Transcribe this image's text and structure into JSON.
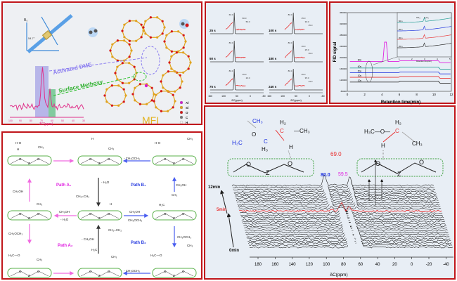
{
  "panel_mechanism_overview": {
    "field_label": "B₀",
    "angle_label": "54.7°",
    "activated_label": "Activated DME",
    "methoxy_label": "Surface Methoxy",
    "framework_label": "MFI",
    "axis_ticks": [
      "100",
      "90",
      "80",
      "70",
      "60",
      "50",
      "40",
      "30"
    ],
    "axis_label": "δC(ppm)",
    "legend": [
      {
        "label": "Al",
        "color": "#d51ccf"
      },
      {
        "label": "Si",
        "color": "#e0a21c"
      },
      {
        "label": "O",
        "color": "#d61616"
      },
      {
        "label": "C",
        "color": "#777777"
      },
      {
        "label": "H",
        "color": "#f4f4f4"
      }
    ]
  },
  "panel_nmr_series": {
    "axis_ticks": [
      "150",
      "100",
      "50",
      "0",
      "-50"
    ],
    "axis_label": "δC(ppm)",
    "spectra": [
      {
        "time": "25 s",
        "peaks": [
          "60.0",
          "80.0",
          "50.0"
        ]
      },
      {
        "time": "50 s",
        "peaks": [
          "80.0"
        ]
      },
      {
        "time": "75 s",
        "peaks": [
          "80.0",
          "25.0",
          "20.0"
        ]
      },
      {
        "time": "100 s",
        "peaks": [
          "80.0",
          "25.0",
          "30.0",
          "25.0"
        ]
      },
      {
        "time": "180 s",
        "peaks": [
          "80.0",
          "16.0",
          "25.0",
          "35.0"
        ]
      },
      {
        "time": "240 s",
        "peaks": [
          "80.0",
          "25.0",
          "35.0",
          "23.0"
        ]
      }
    ]
  },
  "panel_gc": {
    "ylabel": "FID signal",
    "xlabel": "Retention time(min)",
    "y_ticks": [
      "360000",
      "320000",
      "280000",
      "240000",
      "200000",
      "160000",
      "120000",
      "80000"
    ],
    "x_ticks": [
      "0",
      "2",
      "4",
      "6",
      "8",
      "10",
      "12"
    ],
    "series": [
      {
        "label": "80s",
        "color": "#e020e0",
        "baseline": 186000
      },
      {
        "label": "60s",
        "color": "#2aa198",
        "baseline": 163000
      },
      {
        "label": "50s",
        "color": "#2a3ee0",
        "baseline": 146000
      },
      {
        "label": "30s",
        "color": "#e84040",
        "baseline": 130000
      },
      {
        "label": "20s",
        "color": "#333333",
        "baseline": 113000
      }
    ],
    "inset": {
      "series_labels": [
        "60 s",
        "50 s",
        "30 s",
        "20 s"
      ],
      "peak_labels": [
        "CH₄",
        "C₂H₄"
      ],
      "x_ticks": [
        "1",
        "2",
        "3",
        "4",
        "5"
      ],
      "xlabel": "Retention time(min)"
    }
  },
  "panel_pathways": {
    "path_a1": "Path A₁",
    "path_a2": "Path A₂",
    "path_b1": "Path B₁",
    "path_b2": "Path B₂",
    "methanol": "CH₃OH",
    "dme": "CH₃OCH₃",
    "minus_water": "- H₂O",
    "minus_dme": "- CH₃OCH₃",
    "minus_methanol": "- CH₃OH",
    "ethylene": "CH₂=CH₂",
    "zeolite_o": "O",
    "zeolite_z": "Z",
    "methyl": "CH₃",
    "h": "H",
    "h2c": "H₂C",
    "h3c_o": "H₃C—O",
    "h_o": "H-O"
  },
  "panel_stack": {
    "label_top": "12min",
    "label_mid": "5min",
    "label_bottom": "0min",
    "peak_80": "80.0",
    "peak_69": "69.0",
    "peak_59": "59.5",
    "axis_ticks": [
      "180",
      "160",
      "140",
      "120",
      "100",
      "80",
      "60",
      "40",
      "20",
      "0",
      "-20",
      "-40"
    ],
    "axis_label": "δC(ppm)",
    "colors": {
      "peak_80": "#1a2fe0",
      "peak_69": "#e83030",
      "peak_59": "#e020e0",
      "highlight": "#e83030"
    },
    "struct_left": {
      "ch3_top": "CH₃",
      "o": "O",
      "h3c": "H₃C",
      "c": "C",
      "h3": "H₃",
      "h2": "H₂",
      "c_red": "C",
      "ch3_right": "—CH₃",
      "h": "H"
    },
    "struct_right": {
      "h3co": "H₃C—O—",
      "h2": "H₂",
      "c_red": "C",
      "ch3": "CH₃",
      "h": "H"
    },
    "zeolite": {
      "o": "O",
      "z": "Z"
    }
  }
}
